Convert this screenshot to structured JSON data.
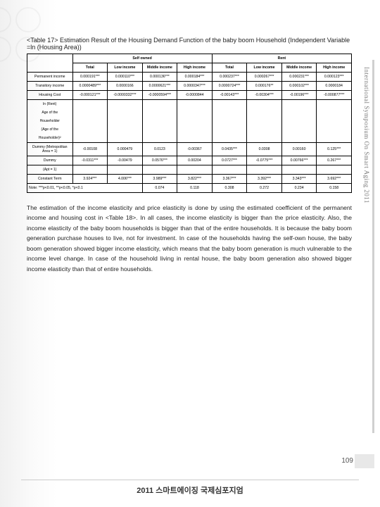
{
  "title": "<Table 17> Estimation Result of the Housing Demand Function of the baby boom Household (Independent Variable =ln (Housing Area))",
  "table": {
    "group_headers": [
      "Self owned",
      "Rent"
    ],
    "sub_headers": [
      "Total",
      "Low income",
      "Middle income",
      "High income",
      "Total",
      "Low income",
      "Middle income",
      "High income"
    ],
    "rows": [
      {
        "label": "Permanent income",
        "cells": [
          "0.000191***",
          "0.000110***",
          "0.000136***",
          "0.000184***",
          "0.000237***",
          "0.000267***",
          "0.000231***",
          "0.000123***"
        ]
      },
      {
        "label": "Transitory income",
        "cells": [
          "0.0000489***",
          "0.0000166",
          "0.0000621***",
          "0.0000347***",
          "0.0000724***",
          "0.000176**",
          "0.000102***",
          "0.0000184"
        ]
      },
      {
        "label": "Housing Cost",
        "cells": [
          "-0.000121***",
          "-0.0000332***",
          "-0.0000594***",
          "-0.0000844",
          "-0.00143***",
          "-0.00304***",
          "-0.00196***",
          "-0.000877***"
        ]
      },
      {
        "label": "ln (Rent)",
        "sub": true,
        "cells": []
      },
      {
        "label": "Age of the",
        "sub": true,
        "cells": []
      },
      {
        "label": "Householder",
        "sub": true,
        "cells": []
      },
      {
        "label": "(Age of the",
        "sub": true,
        "cells": []
      },
      {
        "label": "Householder)²",
        "sub": true,
        "cells": []
      },
      {
        "label": "Dummy (Metropolitan Area = 1)",
        "cells": [
          "-0.00108",
          "0.000479",
          "0.0123",
          "-0.00367",
          "0.0435***",
          "0.0308",
          "0.00160",
          "0.125***"
        ]
      },
      {
        "label": "Dummy",
        "cells": [
          "-0.0311***",
          "-0.00479",
          "0.0576***",
          "0.00204",
          "0.0727***",
          "-0.0775***",
          "0.00766***",
          "0.267***"
        ]
      },
      {
        "label": "(Apt = 1)",
        "sub": true,
        "cells": []
      },
      {
        "label": "Constant Term",
        "cells": [
          "3.924***",
          "4.006***",
          "3.989***",
          "3.822***",
          "3.367***",
          "3.392***",
          "3.343***",
          "3.692***"
        ]
      }
    ],
    "note_label": "Note: ***p<0.01, **p<0.05, *p<0.1",
    "note_vals": [
      "0.074",
      "0.118",
      "0.308",
      "0.272",
      "0.234",
      "0.158"
    ]
  },
  "body": "The estimation of the income elasticity and price elasticity is done by using the estimated coefficient of the permanent income and housing cost in <Table 18>. In all cases, the income elasticity is bigger than the price elasticity. Also, the income elasticity of the baby boom households is bigger than that of the entire households. It is because the baby boom generation purchase houses to live, not for investment. In case of the households having the self-own house, the baby boom generation showed bigger income elasticity, which means that the baby boom generation is much vulnerable to the income level change. In case of the household living in rental house, the baby boom generation also showed bigger income elasticity than that of entire households.",
  "side_text": "International Symposium On Smart Aging 2011",
  "page_number": "109",
  "footer": "2011 스마트에이징 국제심포지엄"
}
